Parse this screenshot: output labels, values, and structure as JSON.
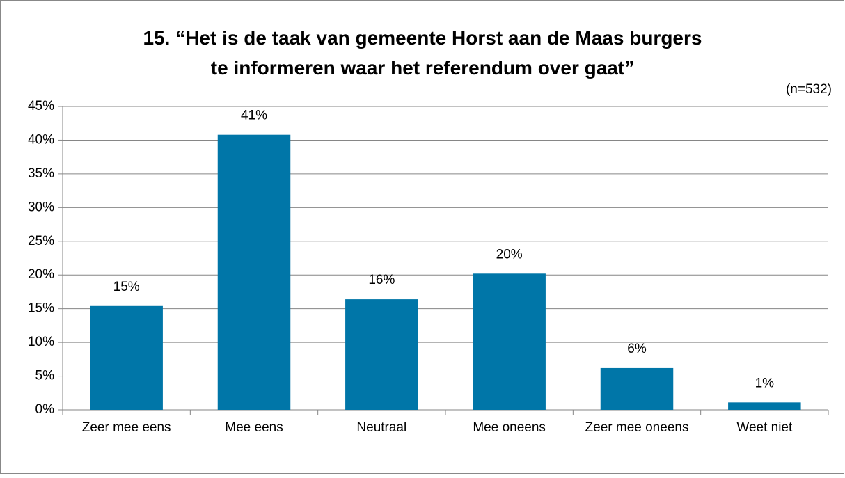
{
  "chart_data": {
    "type": "bar",
    "title": "15. “Het is de taak van gemeente Horst aan de Maas burgers\nte informeren waar het referendum over gaat”",
    "subtitle": "(n=532)",
    "categories": [
      "Zeer mee eens",
      "Mee eens",
      "Neutraal",
      "Mee oneens",
      "Zeer mee oneens",
      "Weet niet"
    ],
    "values": [
      15.4,
      40.8,
      16.4,
      20.2,
      6.2,
      1.1
    ],
    "value_labels": [
      "15%",
      "41%",
      "16%",
      "20%",
      "6%",
      "1%"
    ],
    "color": "#0076a8",
    "ylim": [
      0,
      45
    ],
    "yticks": [
      {
        "value": 0,
        "label": "0%"
      },
      {
        "value": 5,
        "label": "5%"
      },
      {
        "value": 10,
        "label": "10%"
      },
      {
        "value": 15,
        "label": "15%"
      },
      {
        "value": 20,
        "label": "20%"
      },
      {
        "value": 25,
        "label": "25%"
      },
      {
        "value": 30,
        "label": "30%"
      },
      {
        "value": 35,
        "label": "35%"
      },
      {
        "value": 40,
        "label": "40%"
      },
      {
        "value": 45,
        "label": "45%"
      }
    ],
    "grid": true
  }
}
